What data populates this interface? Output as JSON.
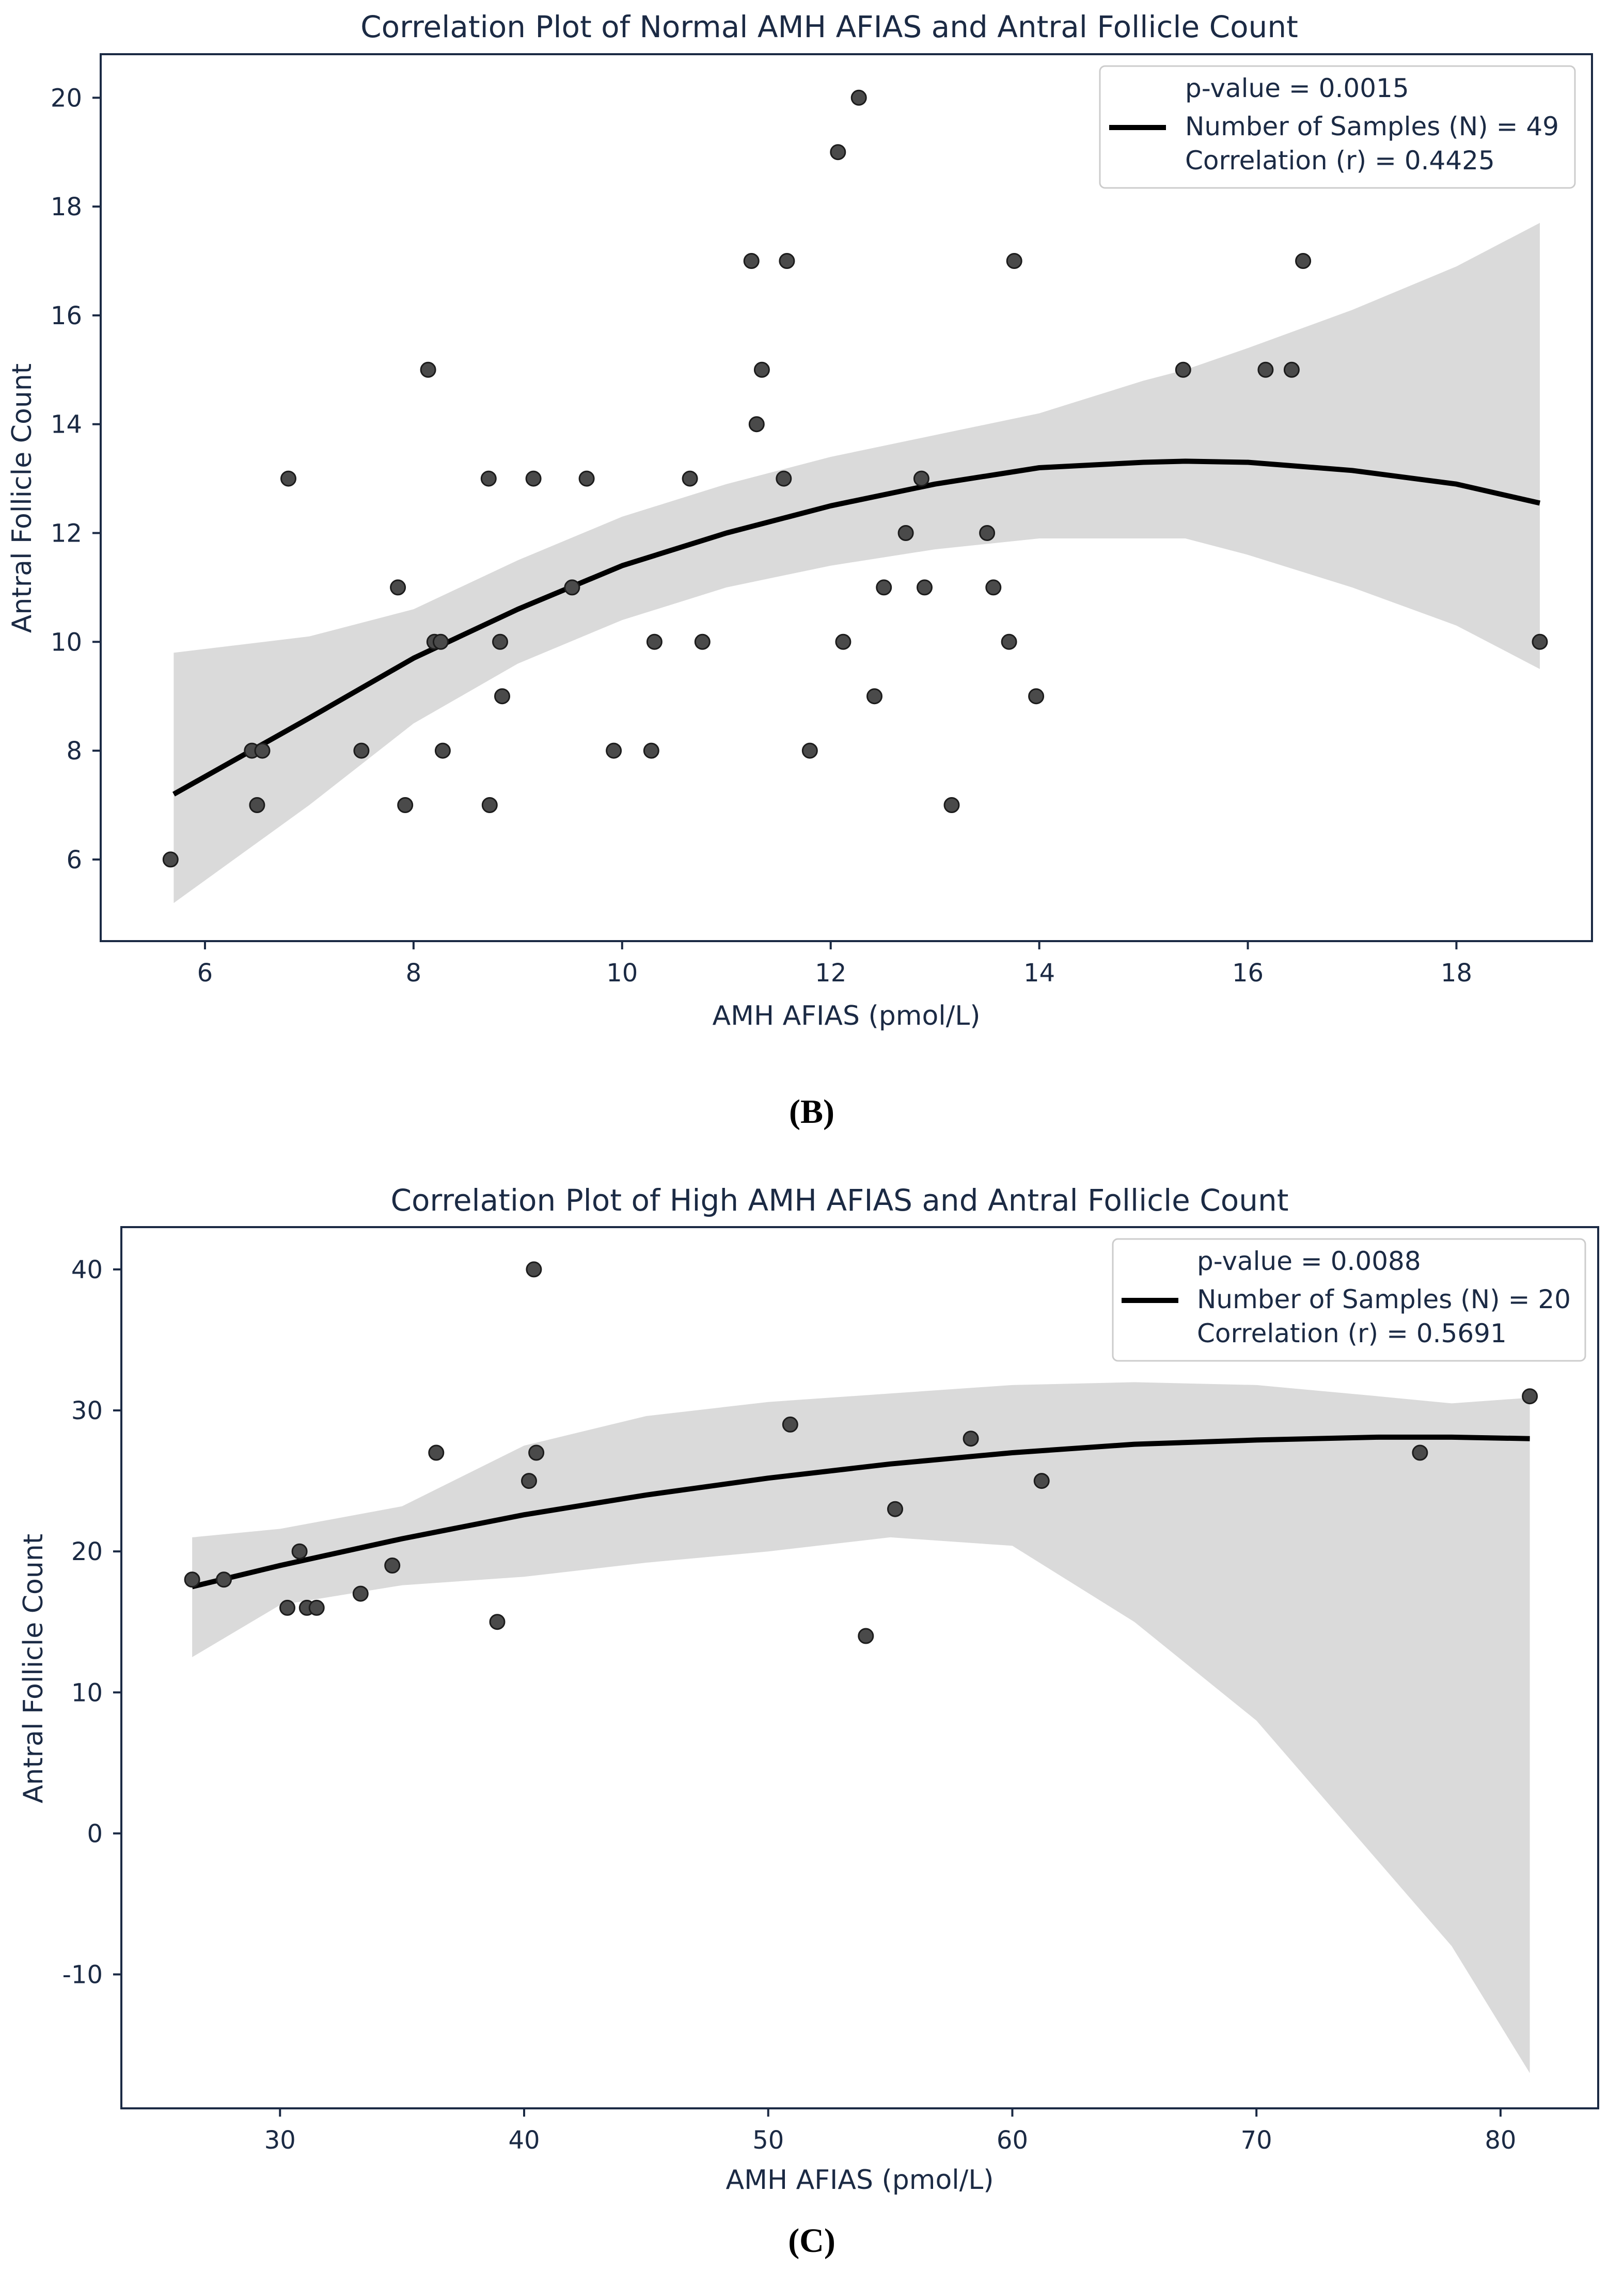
{
  "chart_data": [
    {
      "type": "scatter",
      "title": "Correlation Plot of Normal AMH AFIAS and Antral Follicle Count",
      "xlabel": "AMH AFIAS (pmol/L)",
      "ylabel": "Antral Follicle Count",
      "panel_label": "(B)",
      "xlim": [
        5.0,
        19.3
      ],
      "ylim": [
        4.5,
        20.8
      ],
      "xticks": [
        6,
        8,
        10,
        12,
        14,
        16,
        18
      ],
      "yticks": [
        6,
        8,
        10,
        12,
        14,
        16,
        18,
        20
      ],
      "legend": {
        "position": "top-right",
        "lines": [
          "p-value = 0.0015",
          "Number of Samples (N) = 49",
          "Correlation (r) = 0.4425"
        ]
      },
      "fit": {
        "type": "quadratic",
        "x": [
          5.7,
          7.0,
          8.0,
          9.0,
          10.0,
          11.0,
          12.0,
          13.0,
          14.0,
          15.0,
          15.4,
          16.0,
          17.0,
          18.0,
          18.8
        ],
        "y": [
          7.2,
          8.6,
          9.7,
          10.6,
          11.4,
          12.0,
          12.5,
          12.9,
          13.2,
          13.3,
          13.32,
          13.3,
          13.15,
          12.9,
          12.55
        ],
        "ci_upper": [
          9.8,
          10.1,
          10.6,
          11.5,
          12.3,
          12.9,
          13.4,
          13.8,
          14.2,
          14.8,
          15.0,
          15.4,
          16.1,
          16.9,
          17.7
        ],
        "ci_lower": [
          5.2,
          7.0,
          8.5,
          9.6,
          10.4,
          11.0,
          11.4,
          11.7,
          11.9,
          11.9,
          11.9,
          11.6,
          11.0,
          10.3,
          9.5
        ]
      },
      "points": {
        "x": [
          5.67,
          6.45,
          6.5,
          6.55,
          6.8,
          7.5,
          7.85,
          7.92,
          8.14,
          8.2,
          8.26,
          8.28,
          8.72,
          8.73,
          8.83,
          8.85,
          9.15,
          9.52,
          9.66,
          9.92,
          10.28,
          10.31,
          10.65,
          10.77,
          11.24,
          11.29,
          11.34,
          11.55,
          11.58,
          11.8,
          12.07,
          12.12,
          12.27,
          12.42,
          12.51,
          12.72,
          12.87,
          12.9,
          13.16,
          13.5,
          13.56,
          13.71,
          13.76,
          13.97,
          15.38,
          16.17,
          16.42,
          16.53,
          18.8
        ],
        "y": [
          6,
          8,
          7,
          8,
          13,
          8,
          11,
          7,
          15,
          10,
          10,
          8,
          13,
          7,
          10,
          9,
          13,
          11,
          13,
          8,
          8,
          10,
          13,
          10,
          17,
          14,
          15,
          13,
          17,
          8,
          19,
          10,
          20,
          9,
          11,
          12,
          13,
          11,
          7,
          12,
          11,
          10,
          17,
          9,
          15,
          15,
          15,
          17,
          10
        ]
      }
    },
    {
      "type": "scatter",
      "title": "Correlation Plot of High AMH AFIAS and Antral Follicle Count",
      "xlabel": "AMH AFIAS (pmol/L)",
      "ylabel": "Antral Follicle Count",
      "panel_label": "(C)",
      "xlim": [
        23.5,
        84.0
      ],
      "ylim": [
        -19.5,
        43.0
      ],
      "xticks": [
        30,
        40,
        50,
        60,
        70,
        80
      ],
      "yticks": [
        -10,
        0,
        10,
        20,
        30,
        40
      ],
      "legend": {
        "position": "top-right",
        "lines": [
          "p-value = 0.0088",
          "Number of Samples (N) = 20",
          "Correlation (r) = 0.5691"
        ]
      },
      "fit": {
        "type": "quadratic",
        "x": [
          26.4,
          30,
          35,
          40,
          45,
          50,
          55,
          60,
          65,
          70,
          75,
          78,
          81.2
        ],
        "y": [
          17.5,
          19.0,
          20.9,
          22.6,
          24.0,
          25.2,
          26.2,
          27.0,
          27.6,
          27.9,
          28.1,
          28.1,
          28.0
        ],
        "ci_upper": [
          21.0,
          21.6,
          23.2,
          27.5,
          29.6,
          30.6,
          31.2,
          31.8,
          32.0,
          31.8,
          31.0,
          30.5,
          30.9
        ],
        "ci_lower": [
          12.5,
          16.2,
          17.6,
          18.2,
          19.2,
          20.0,
          21.0,
          20.4,
          15.0,
          8.0,
          -2.0,
          -8.0,
          -17.0
        ]
      },
      "points": {
        "x": [
          26.4,
          27.7,
          30.3,
          30.8,
          31.1,
          31.5,
          33.3,
          34.6,
          36.4,
          38.9,
          40.2,
          40.4,
          40.5,
          50.9,
          54.0,
          55.2,
          58.3,
          61.2,
          76.7,
          81.2
        ],
        "y": [
          18,
          18,
          16,
          20,
          16,
          16,
          17,
          19,
          27,
          15,
          25,
          40,
          27,
          29,
          14,
          23,
          28,
          25,
          27,
          31
        ]
      }
    }
  ]
}
